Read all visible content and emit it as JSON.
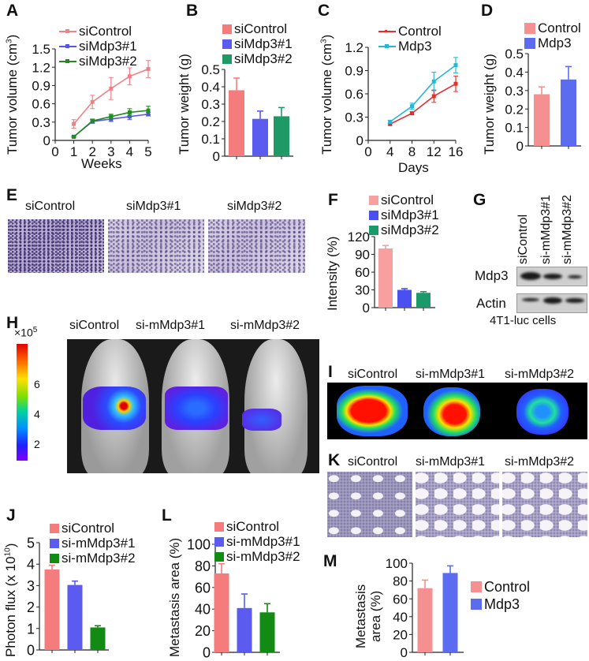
{
  "panels": {
    "A": "A",
    "B": "B",
    "C": "C",
    "D": "D",
    "E": "E",
    "F": "F",
    "G": "G",
    "H": "H",
    "I": "I",
    "J": "J",
    "K": "K",
    "L": "L",
    "M": "M"
  },
  "colors": {
    "control_pink": "#f47c7c",
    "blue": "#5b5bf0",
    "teal_green": "#1f9a66",
    "dark_green": "#138a13",
    "line_red": "#e03030",
    "line_cyan": "#2ab5d5"
  },
  "chart_data": [
    {
      "panel": "A",
      "type": "line",
      "ylabel": "Tumor volume (cm",
      "ylabel_sup": "3",
      "ylabel_end": ")",
      "xlabel": "Weeks",
      "xlim": [
        0,
        5
      ],
      "ylim": [
        0,
        1.5
      ],
      "xticks": [
        "0",
        "1",
        "2",
        "3",
        "4",
        "5"
      ],
      "yticks": [
        "0",
        "0.3",
        "0.6",
        "0.9",
        "1.2",
        "1.5"
      ],
      "x": [
        1,
        2,
        3,
        4,
        5
      ],
      "series": [
        {
          "name": "siControl",
          "color": "#f07f86",
          "values": [
            0.27,
            0.63,
            0.85,
            1.05,
            1.17
          ],
          "errors": [
            0.07,
            0.11,
            0.18,
            0.14,
            0.14
          ]
        },
        {
          "name": "siMdp3#1",
          "color": "#5555ee",
          "values": [
            0.06,
            0.31,
            0.35,
            0.39,
            0.43
          ],
          "errors": [
            0.01,
            0.03,
            0.04,
            0.05,
            0.03
          ]
        },
        {
          "name": "siMdp3#2",
          "color": "#228b22",
          "values": [
            0.06,
            0.32,
            0.39,
            0.46,
            0.49
          ],
          "errors": [
            0.01,
            0.03,
            0.04,
            0.06,
            0.07
          ]
        }
      ]
    },
    {
      "panel": "B",
      "type": "bar",
      "ylabel": "Tumor weight (g)",
      "ylim": [
        0,
        0.5
      ],
      "yticks": [
        "0",
        "0.1",
        "0.2",
        "0.3",
        "0.4",
        "0.5"
      ],
      "categories": [
        "siControl",
        "siMdp3#1",
        "siMdp3#2"
      ],
      "colors": [
        "#f47c7c",
        "#5b5bf0",
        "#1f9a66"
      ],
      "values": [
        0.38,
        0.215,
        0.23
      ],
      "errors": [
        0.07,
        0.045,
        0.05
      ]
    },
    {
      "panel": "C",
      "type": "line",
      "ylabel": "Tumor volume (cm",
      "ylabel_sup": "3",
      "ylabel_end": ")",
      "xlabel": "Days",
      "xlim": [
        0,
        16
      ],
      "ylim": [
        0,
        1.2
      ],
      "xticks": [
        "0",
        "4",
        "8",
        "12",
        "16"
      ],
      "yticks": [
        "0",
        "0.3",
        "0.6",
        "0.9",
        "1.2"
      ],
      "x": [
        4,
        8,
        12,
        16
      ],
      "series": [
        {
          "name": "Control",
          "color": "#e03030",
          "values": [
            0.21,
            0.35,
            0.57,
            0.73
          ],
          "errors": [
            0.01,
            0.02,
            0.08,
            0.1
          ]
        },
        {
          "name": "Mdp3",
          "color": "#2ab5d5",
          "values": [
            0.24,
            0.44,
            0.76,
            0.97
          ],
          "errors": [
            0.02,
            0.04,
            0.12,
            0.1
          ]
        }
      ]
    },
    {
      "panel": "D",
      "type": "bar",
      "ylabel": "Tumor weight (g)",
      "ylim": [
        0,
        0.5
      ],
      "yticks": [
        "0",
        "0.1",
        "0.2",
        "0.3",
        "0.4",
        "0.5"
      ],
      "categories": [
        "Control",
        "Mdp3"
      ],
      "colors": [
        "#f59090",
        "#5b6cf0"
      ],
      "values": [
        0.28,
        0.36
      ],
      "errors": [
        0.04,
        0.07
      ]
    },
    {
      "panel": "F",
      "type": "bar",
      "ylabel": "Intensity (%)",
      "ylim": [
        0,
        120
      ],
      "yticks": [
        "0",
        "30",
        "60",
        "90",
        "120"
      ],
      "categories": [
        "siControl",
        "siMdp3#1",
        "siMdp3#2"
      ],
      "colors": [
        "#f8a0a0",
        "#4a50f0",
        "#1a9a6a"
      ],
      "values": [
        100,
        30,
        25
      ],
      "errors": [
        5,
        2,
        2
      ]
    },
    {
      "panel": "J",
      "type": "bar",
      "ylabel": "Photon flux (x 10",
      "ylabel_sup": "10",
      "ylabel_end": ")",
      "ylim": [
        0,
        5
      ],
      "yticks": [
        "0",
        "1",
        "2",
        "3",
        "4",
        "5"
      ],
      "categories": [
        "siControl",
        "si-mMdp3#1",
        "si-mMdp3#2"
      ],
      "colors": [
        "#f47c7c",
        "#5b5bf0",
        "#138a13"
      ],
      "values": [
        3.75,
        3.03,
        1.05
      ],
      "errors": [
        0.2,
        0.18,
        0.08
      ]
    },
    {
      "panel": "L",
      "type": "bar",
      "ylabel": "Metastasis area (%)",
      "ylim": [
        0,
        100
      ],
      "yticks": [
        "0",
        "20",
        "40",
        "60",
        "80",
        "100"
      ],
      "categories": [
        "siControl",
        "si-mMdp3#1",
        "si-mMdp3#2"
      ],
      "colors": [
        "#f47c7c",
        "#5b5bf0",
        "#138a13"
      ],
      "values": [
        73,
        41,
        37
      ],
      "errors": [
        9,
        13,
        8
      ]
    },
    {
      "panel": "M",
      "type": "bar",
      "ylabel_line1": "Metastasis",
      "ylabel_line2": "area (%)",
      "ylim": [
        0,
        100
      ],
      "yticks": [
        "0",
        "20",
        "40",
        "60",
        "80",
        "100"
      ],
      "categories": [
        "Control",
        "Mdp3"
      ],
      "colors": [
        "#f59090",
        "#5b6cf0"
      ],
      "values": [
        72,
        89
      ],
      "errors": [
        9,
        8
      ]
    }
  ],
  "E": {
    "titles": [
      "siControl",
      "siMdp3#1",
      "siMdp3#2"
    ]
  },
  "G": {
    "lanes": [
      "siControl",
      "si-mMdp3#1",
      "si-mMdp3#2"
    ],
    "rows": [
      "Mdp3",
      "Actin"
    ],
    "caption": "4T1-luc cells"
  },
  "H": {
    "titles": [
      "siControl",
      "si-mMdp3#1",
      "si-mMdp3#2"
    ],
    "colorbar_unit": "×10",
    "colorbar_unit_sup": "5",
    "colorbar_ticks": [
      "6",
      "4",
      "2"
    ]
  },
  "I": {
    "titles": [
      "siControl",
      "si-mMdp3#1",
      "si-mMdp3#2"
    ]
  },
  "K": {
    "titles": [
      "siControl",
      "si-mMdp3#1",
      "si-mMdp3#2"
    ]
  }
}
